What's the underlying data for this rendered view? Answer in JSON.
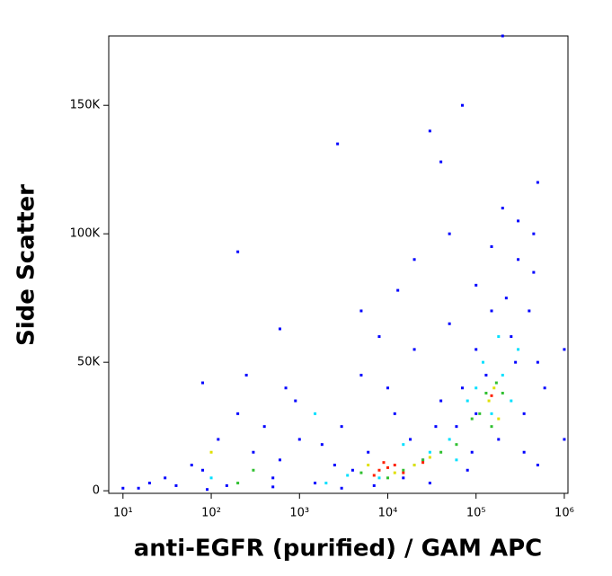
{
  "chart_data": {
    "type": "scatter",
    "xlabel": "anti-EGFR (purified) / GAM APC",
    "ylabel": "Side Scatter",
    "xscale": "log",
    "xlim": [
      6.9,
      1100000
    ],
    "xticks": [
      {
        "value": 10,
        "label": "10¹"
      },
      {
        "value": 100,
        "label": "10²"
      },
      {
        "value": 1000,
        "label": "10³"
      },
      {
        "value": 10000,
        "label": "10⁴"
      },
      {
        "value": 100000,
        "label": "10⁵"
      },
      {
        "value": 1000000,
        "label": "10⁶"
      }
    ],
    "ylim": [
      -1000,
      177000
    ],
    "yticks": [
      0,
      {
        "value": 50000,
        "label": "50K"
      },
      {
        "value": 100000,
        "label": "100K"
      },
      {
        "value": 150000,
        "label": "150K"
      }
    ],
    "series": [
      {
        "color": "#0000ff",
        "x": [
          150,
          80,
          300,
          500,
          1000,
          200,
          3000,
          5000,
          8000,
          20000,
          30000,
          50000,
          100000,
          200000,
          300000,
          400000,
          500000,
          250000,
          150000,
          70000,
          40000,
          12000,
          6000,
          2500,
          1500,
          600,
          400,
          120,
          60,
          30,
          15,
          20,
          700,
          900,
          1800,
          4000,
          7000,
          15000,
          25000,
          60000,
          90000,
          180000,
          350000,
          450000,
          600000,
          100000,
          130000,
          220000,
          280000,
          50000,
          35000,
          18000,
          10000,
          2700,
          13000,
          600,
          200,
          40000,
          70000,
          200000,
          1000000,
          1000000,
          300000,
          500000,
          450000,
          100000,
          80000,
          30000,
          3000,
          500,
          90,
          40,
          250,
          80,
          10,
          500000,
          350000,
          150000,
          20000,
          5000
        ],
        "values": [
          2000,
          8000,
          15000,
          5000,
          20000,
          30000,
          25000,
          45000,
          60000,
          90000,
          140000,
          100000,
          80000,
          110000,
          90000,
          70000,
          50000,
          60000,
          70000,
          40000,
          35000,
          30000,
          15000,
          10000,
          3000,
          12000,
          25000,
          20000,
          10000,
          5000,
          1000,
          3000,
          40000,
          35000,
          18000,
          8000,
          2000,
          5000,
          12000,
          25000,
          15000,
          20000,
          30000,
          85000,
          40000,
          55000,
          45000,
          75000,
          50000,
          65000,
          25000,
          20000,
          40000,
          135000,
          78000,
          63000,
          93000,
          128000,
          150000,
          177000,
          20000,
          55000,
          105000,
          120000,
          100000,
          30000,
          8000,
          3000,
          1000,
          1500,
          500,
          2000,
          45000,
          42000,
          1000,
          10000,
          15000,
          95000,
          55000,
          70000
        ]
      },
      {
        "color": "#00e0ff",
        "x": [
          100000,
          150000,
          200000,
          80000,
          250000,
          120000,
          50000,
          30000,
          20000,
          8000,
          3500,
          15000,
          300000,
          180000,
          60000,
          2000,
          100,
          1500
        ],
        "values": [
          40000,
          30000,
          45000,
          35000,
          35000,
          50000,
          20000,
          15000,
          10000,
          5000,
          6000,
          18000,
          55000,
          60000,
          12000,
          3000,
          5000,
          30000
        ]
      },
      {
        "color": "#30c030",
        "x": [
          130000,
          170000,
          110000,
          200000,
          25000,
          15000,
          10000,
          40000,
          5000,
          150000,
          200,
          300,
          90000,
          60000
        ],
        "values": [
          38000,
          42000,
          30000,
          38000,
          12000,
          8000,
          5000,
          15000,
          7000,
          25000,
          3000,
          8000,
          28000,
          18000
        ]
      },
      {
        "color": "#e0e000",
        "x": [
          140000,
          160000,
          20000,
          12000,
          6000,
          30000,
          100,
          180000
        ],
        "values": [
          35000,
          40000,
          10000,
          7000,
          10000,
          13000,
          15000,
          28000
        ]
      },
      {
        "color": "#ff2000",
        "x": [
          10000,
          8000,
          12000,
          15000,
          7000,
          9000,
          25000,
          150000
        ],
        "values": [
          9000,
          8000,
          10000,
          7000,
          6000,
          11000,
          11000,
          37000
        ]
      }
    ]
  }
}
